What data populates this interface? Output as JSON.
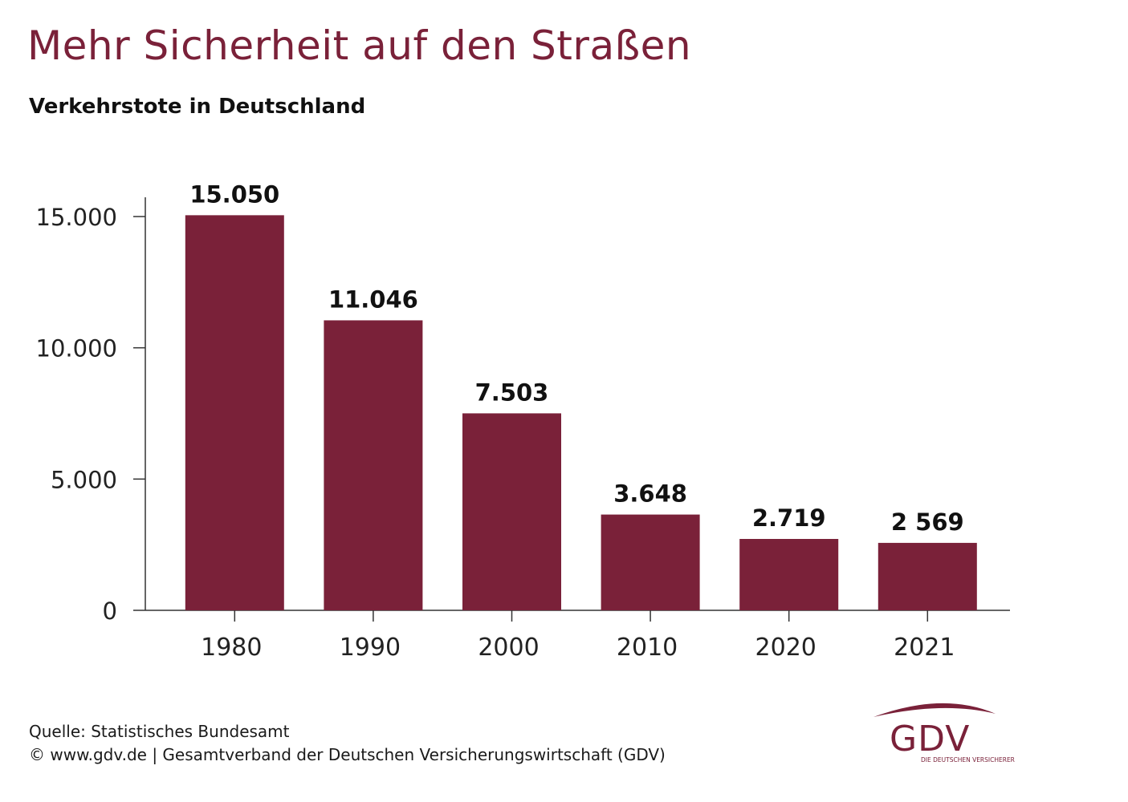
{
  "header": {
    "title": "Mehr Sicherheit auf den Straßen",
    "subtitle": "Verkehrstote in Deutschland"
  },
  "chart_data": {
    "type": "bar",
    "categories": [
      "1980",
      "1990",
      "2000",
      "2010",
      "2020",
      "2021"
    ],
    "values": [
      15050,
      11046,
      7503,
      3648,
      2719,
      2569
    ],
    "data_labels": [
      "15.050",
      "11.046",
      "7.503",
      "3.648",
      "2.719",
      "2 569"
    ],
    "yticks": [
      0,
      5000,
      10000,
      15000
    ],
    "ytick_labels": [
      "0",
      "5.000",
      "10.000",
      "15.000"
    ],
    "ylim": [
      0,
      15700
    ],
    "grid": false,
    "bar_color": "#7a2139"
  },
  "footer": {
    "source": "Quelle: Statistisches Bundesamt",
    "copyright": "© www.gdv.de | Gesamtverband der Deutschen Versicherungswirtschaft (GDV)"
  },
  "logo": {
    "name": "GDV",
    "tagline": "DIE DEUTSCHEN VERSICHERER",
    "color": "#7a2139"
  }
}
